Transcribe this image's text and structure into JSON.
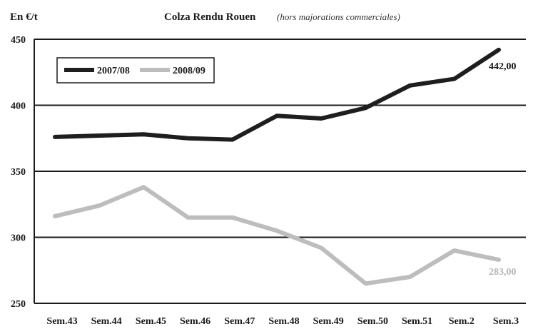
{
  "chart_data": {
    "type": "line",
    "unit_label": "En €/t",
    "title": "Colza Rendu Rouen",
    "subtitle": "(hors majorations commerciales)",
    "categories": [
      "Sem.43",
      "Sem.44",
      "Sem.45",
      "Sem.46",
      "Sem.47",
      "Sem.48",
      "Sem.49",
      "Sem.50",
      "Sem.51",
      "Sem.2",
      "Sem.3"
    ],
    "ylim": [
      250,
      450
    ],
    "yticks": [
      "450",
      "400",
      "350",
      "300",
      "250"
    ],
    "grid": true,
    "legend_position": "top-left",
    "series": [
      {
        "name": "2007/08",
        "color": "#1e1e1e",
        "values": [
          376,
          377,
          378,
          375,
          374,
          392,
          390,
          398,
          415,
          420,
          442
        ],
        "end_label": "442,00"
      },
      {
        "name": "2008/09",
        "color": "#bdbdbd",
        "values": [
          316,
          324,
          338,
          315,
          315,
          305,
          292,
          265,
          270,
          290,
          283
        ],
        "end_label": "283,00"
      }
    ]
  }
}
